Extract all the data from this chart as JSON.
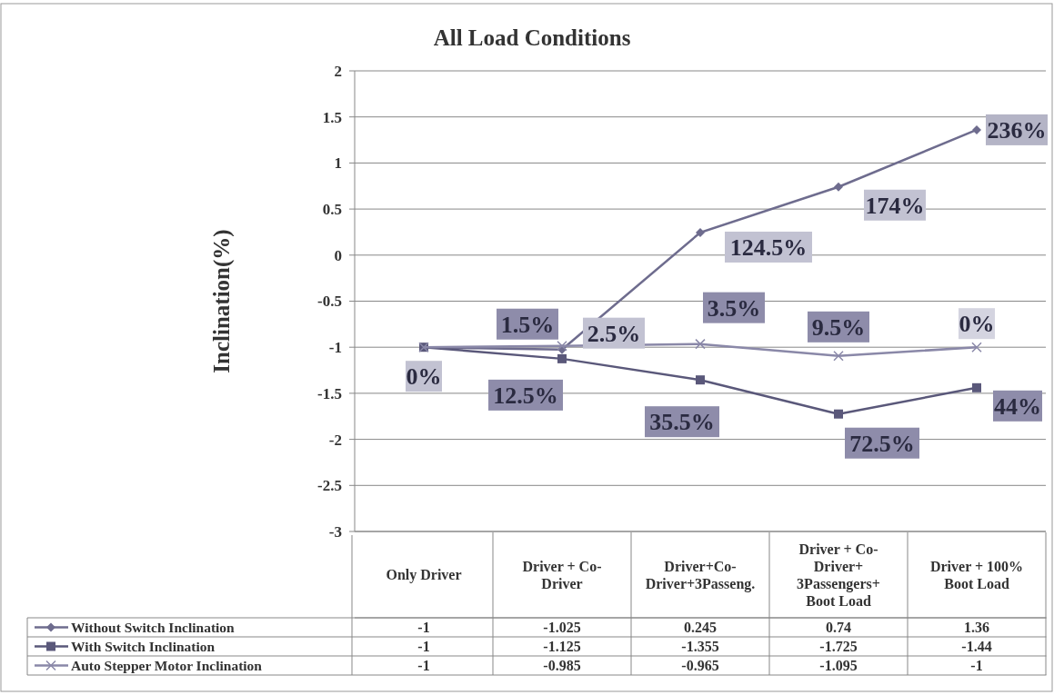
{
  "chart_data": {
    "type": "line",
    "title": "All Load Conditions",
    "ylabel": "Inclination(%)",
    "categories": [
      "Only Driver",
      "Driver + Co-Driver",
      "Driver+Co-Driver+3Passeng.",
      "Driver + Co-Driver+ 3Passengers+ Boot Load",
      "Driver + 100% Boot Load"
    ],
    "series": [
      {
        "name": "Without Switch Inclination",
        "color": "#6e6c8e",
        "marker": "diamond",
        "values": [
          -1,
          -1.025,
          0.245,
          0.74,
          1.36
        ]
      },
      {
        "name": "With Switch Inclination",
        "color": "#5a587a",
        "marker": "square",
        "values": [
          -1,
          -1.125,
          -1.355,
          -1.725,
          -1.44
        ]
      },
      {
        "name": "Auto Stepper Motor Inclination",
        "color": "#8a88a8",
        "marker": "cross",
        "values": [
          -1,
          -0.985,
          -0.965,
          -1.095,
          -1
        ]
      }
    ],
    "ylim": [
      -3,
      2
    ],
    "yticks": [
      -3,
      -2.5,
      -2,
      -1.5,
      -1,
      -0.5,
      0,
      0.5,
      1,
      1.5,
      2
    ],
    "grid": "y",
    "legend": "bottom",
    "data_labels": true,
    "annotations": [
      {
        "text": "236%",
        "x": "Driver + 100% Boot Load",
        "y": 1.36
      },
      {
        "text": "174%",
        "x": "Driver + Co-Driver+ 3Passengers+ Boot Load",
        "y": 0.74
      },
      {
        "text": "124.5%",
        "x": "Driver+Co-Driver+3Passeng.",
        "y": 0.245
      },
      {
        "text": "1.5%",
        "x": "Driver + Co-Driver",
        "y": -1.025
      },
      {
        "text": "2.5%",
        "x": "Driver + Co-Driver",
        "y": -0.985
      },
      {
        "text": "3.5%",
        "x": "Driver+Co-Driver+3Passeng.",
        "y": -0.965
      },
      {
        "text": "9.5%",
        "x": "Driver + Co-Driver+ 3Passengers+ Boot Load",
        "y": -1.095
      },
      {
        "text": "0%",
        "x": "Driver + 100% Boot Load",
        "y": -1
      },
      {
        "text": "0%",
        "x": "Only Driver",
        "y": -1
      },
      {
        "text": "12.5%",
        "x": "Driver + Co-Driver",
        "y": -1.125
      },
      {
        "text": "35.5%",
        "x": "Driver+Co-Driver+3Passeng.",
        "y": -1.355
      },
      {
        "text": "72.5%",
        "x": "Driver + Co-Driver+ 3Passengers+ Boot Load",
        "y": -1.725
      },
      {
        "text": "44%",
        "x": "Driver + 100% Boot Load",
        "y": -1.44
      }
    ]
  }
}
